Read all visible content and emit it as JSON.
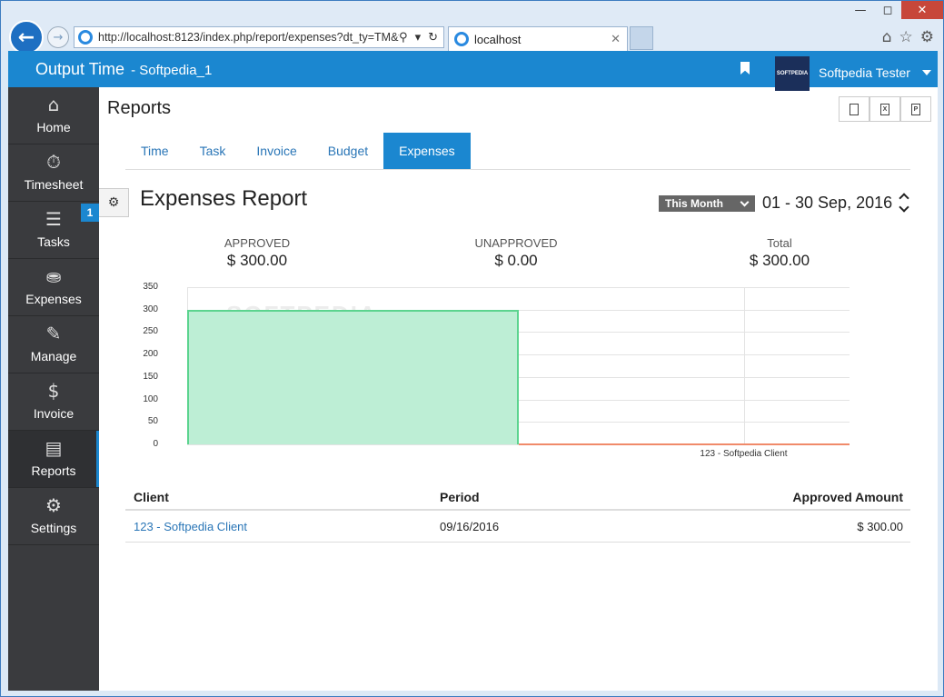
{
  "browser": {
    "address": "http://localhost:8123/index.php/report/expenses?dt_ty=TM&f",
    "tab_title": "localhost"
  },
  "app": {
    "name": "Output Time",
    "workspace": "- Softpedia_1",
    "user": "Softpedia Tester",
    "avatar_text": "SOFTPEDIA"
  },
  "sidebar": {
    "items": [
      {
        "label": "Home",
        "icon": "home-icon"
      },
      {
        "label": "Timesheet",
        "icon": "stopwatch-icon"
      },
      {
        "label": "Tasks",
        "icon": "tasks-icon",
        "badge": "1"
      },
      {
        "label": "Expenses",
        "icon": "coins-icon"
      },
      {
        "label": "Manage",
        "icon": "edit-icon"
      },
      {
        "label": "Invoice",
        "icon": "invoice-icon"
      },
      {
        "label": "Reports",
        "icon": "chart-icon",
        "active": true
      },
      {
        "label": "Settings",
        "icon": "gear-icon"
      }
    ]
  },
  "page": {
    "title": "Reports",
    "tabs": [
      "Time",
      "Task",
      "Invoice",
      "Budget",
      "Expenses"
    ],
    "active_tab": "Expenses",
    "report_title": "Expenses Report",
    "period_label": "This Month",
    "date_range": "01 - 30 Sep, 2016"
  },
  "summary": {
    "approved_label": "APPROVED",
    "approved_value": "$ 300.00",
    "unapproved_label": "UNAPPROVED",
    "unapproved_value": "$ 0.00",
    "total_label": "Total",
    "total_value": "$ 300.00"
  },
  "chart_data": {
    "type": "area",
    "categories": [
      "123 - Softpedia Client"
    ],
    "series": [
      {
        "values": [
          300
        ],
        "color": "#5cd48f"
      },
      {
        "values": [
          0
        ],
        "color": "#f08a6a"
      }
    ],
    "yticks": [
      0,
      50,
      100,
      150,
      200,
      250,
      300,
      350
    ],
    "ylim": [
      0,
      350
    ],
    "grid": true,
    "watermark": "SOFTPEDIA"
  },
  "table": {
    "headers": [
      "Client",
      "Period",
      "Approved Amount"
    ],
    "rows": [
      {
        "client": "123 - Softpedia Client",
        "period": "09/16/2016",
        "amount": "$ 300.00"
      }
    ]
  }
}
